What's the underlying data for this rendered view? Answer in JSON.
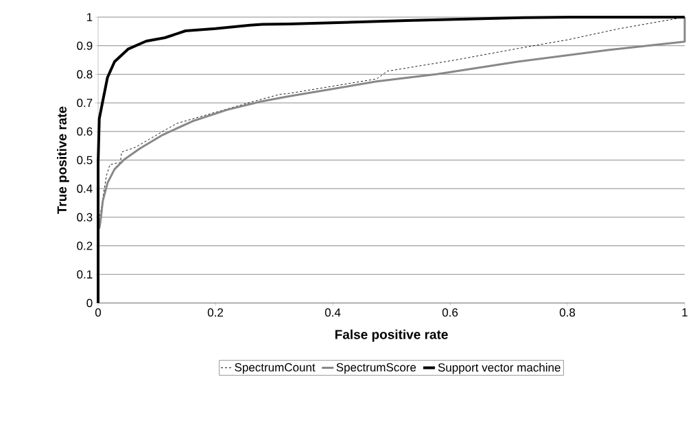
{
  "chart_data": {
    "type": "line",
    "xlabel": "False positive rate",
    "ylabel": "True positive rate",
    "xlim": [
      0,
      1
    ],
    "ylim": [
      0,
      1
    ],
    "xticks": [
      0,
      0.2,
      0.4,
      0.6,
      0.8,
      1
    ],
    "yticks": [
      0,
      0.1,
      0.2,
      0.3,
      0.4,
      0.5,
      0.6,
      0.7,
      0.8,
      0.9,
      1
    ],
    "grid": "y",
    "legend": "bottom",
    "marker": "none",
    "series": [
      {
        "name": "SpectrumCount",
        "color": "#000000",
        "line_style": "dashed",
        "x": [
          0.002,
          0.006,
          0.014,
          0.02,
          0.038,
          0.04,
          0.063,
          0.11,
          0.134,
          0.188,
          0.27,
          0.31,
          0.325,
          0.475,
          0.493,
          0.609,
          0.715,
          0.801,
          0.887,
          1.0
        ],
        "values": [
          0.29,
          0.34,
          0.444,
          0.484,
          0.492,
          0.528,
          0.544,
          0.6,
          0.628,
          0.66,
          0.708,
          0.73,
          0.733,
          0.784,
          0.811,
          0.85,
          0.89,
          0.921,
          0.959,
          1.0
        ]
      },
      {
        "name": "SpectrumScore",
        "color": "#888888",
        "line_style": "solid",
        "x": [
          0.002,
          0.004,
          0.008,
          0.016,
          0.028,
          0.044,
          0.071,
          0.11,
          0.161,
          0.22,
          0.278,
          0.325,
          0.475,
          0.579,
          0.715,
          0.869,
          1.0,
          1.0
        ],
        "values": [
          0.26,
          0.285,
          0.357,
          0.42,
          0.468,
          0.501,
          0.54,
          0.588,
          0.636,
          0.676,
          0.705,
          0.723,
          0.775,
          0.801,
          0.844,
          0.885,
          0.914,
          1.0
        ]
      },
      {
        "name": "Support vector machine",
        "color": "#000000",
        "line_style": "solid",
        "x": [
          0,
          0,
          0.002,
          0.008,
          0.016,
          0.028,
          0.051,
          0.082,
          0.114,
          0.149,
          0.2,
          0.259,
          0.28,
          0.325,
          0.525,
          0.724,
          0.805,
          1.0
        ],
        "values": [
          0,
          0.49,
          0.645,
          0.707,
          0.789,
          0.844,
          0.888,
          0.916,
          0.928,
          0.952,
          0.96,
          0.972,
          0.975,
          0.976,
          0.988,
          0.998,
          1.0,
          1.0
        ]
      }
    ]
  }
}
